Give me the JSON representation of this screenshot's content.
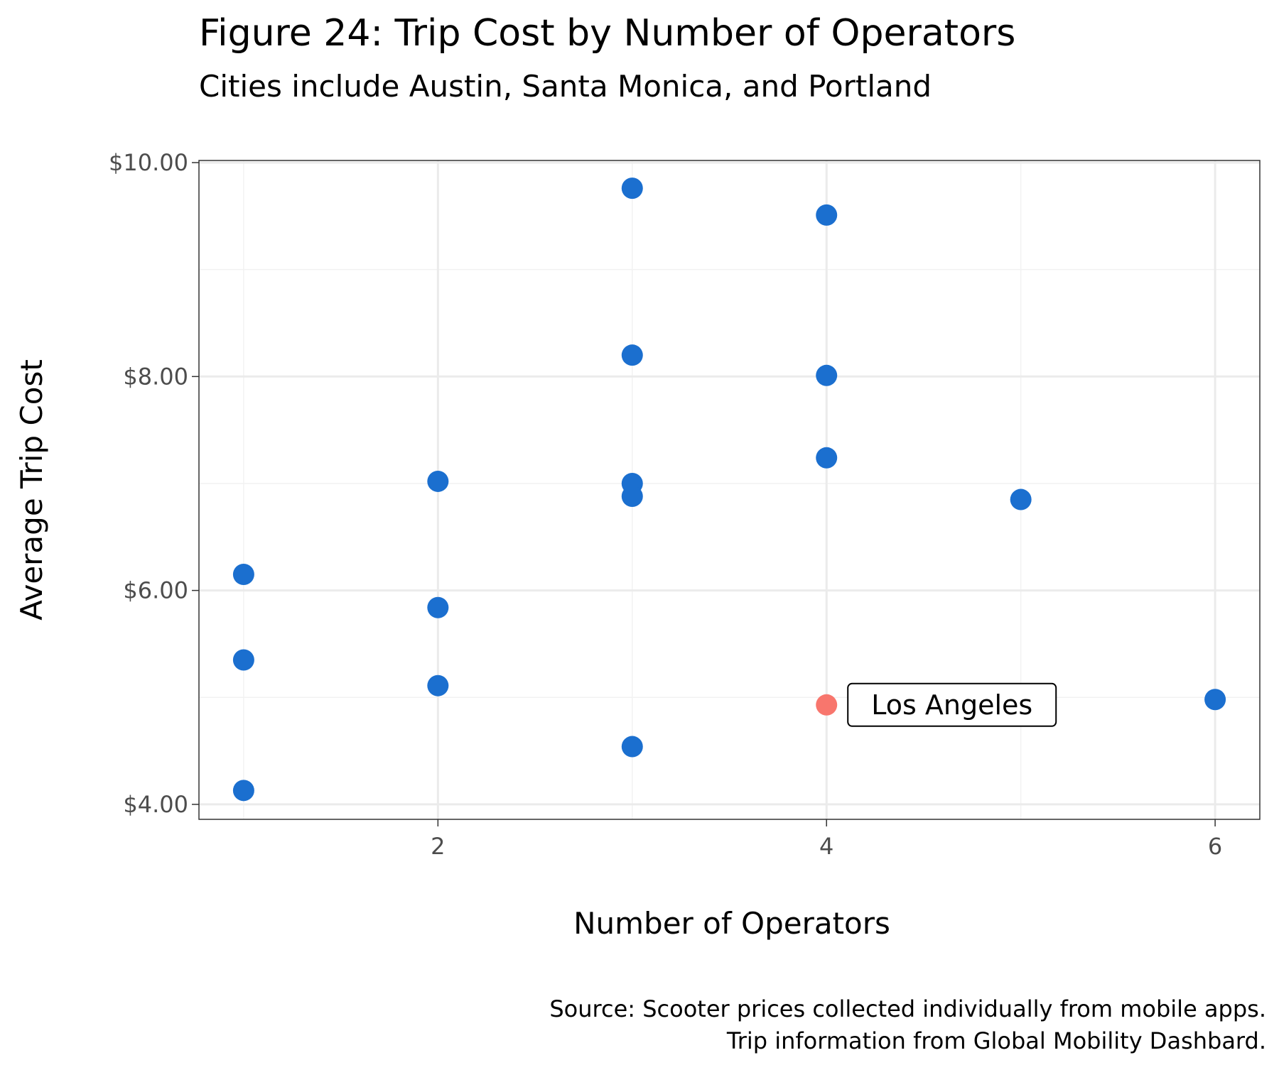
{
  "chart_data": {
    "type": "scatter",
    "title": "Figure 24: Trip Cost by Number of Operators",
    "subtitle": "Cities include Austin, Santa Monica, and Portland",
    "xlabel": "Number of Operators",
    "ylabel": "Average Trip Cost",
    "caption": [
      "Source: Scooter prices collected individually from mobile apps.",
      "Trip information from Global Mobility Dashbard."
    ],
    "xlim": [
      0.77,
      6.23
    ],
    "ylim": [
      3.86,
      10.02
    ],
    "x_ticks": [
      2,
      4,
      6
    ],
    "x_tick_labels": [
      "2",
      "4",
      "6"
    ],
    "y_ticks": [
      4,
      6,
      8,
      10
    ],
    "y_tick_labels": [
      "$4.00",
      "$6.00",
      "$8.00",
      "$10.00"
    ],
    "grid": true,
    "point_color": "#1b6fcf",
    "highlight_color": "#f8766d",
    "points": [
      {
        "x": 1,
        "y": 6.15
      },
      {
        "x": 1,
        "y": 5.35
      },
      {
        "x": 1,
        "y": 4.13
      },
      {
        "x": 2,
        "y": 7.02
      },
      {
        "x": 2,
        "y": 5.84
      },
      {
        "x": 2,
        "y": 5.11
      },
      {
        "x": 3,
        "y": 9.76
      },
      {
        "x": 3,
        "y": 8.2
      },
      {
        "x": 3,
        "y": 7.0
      },
      {
        "x": 3,
        "y": 6.88
      },
      {
        "x": 3,
        "y": 4.54
      },
      {
        "x": 4,
        "y": 9.51
      },
      {
        "x": 4,
        "y": 8.01
      },
      {
        "x": 4,
        "y": 7.24
      },
      {
        "x": 5,
        "y": 6.85
      },
      {
        "x": 6,
        "y": 4.98
      }
    ],
    "highlight": {
      "x": 4,
      "y": 4.93,
      "label": "Los Angeles"
    }
  }
}
